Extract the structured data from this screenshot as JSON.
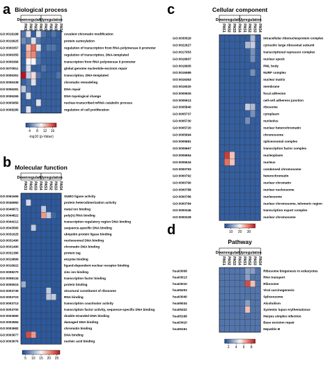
{
  "panels": [
    {
      "letter": "a",
      "title": "Biological process",
      "group_labels": [
        "Downregulaton",
        "Upregulaton"
      ],
      "columns": [
        "PAS1",
        "PAS2",
        "PAS3",
        "PAS4",
        "PAS1",
        "PAS2",
        "PAS3",
        "PAS4"
      ],
      "ids": [
        "GO:0018198",
        "GO:0016925",
        "GO:0000357",
        "GO:0006355",
        "GO:0006366",
        "GO:0070911",
        "GO:0006351",
        "GO:0006338",
        "GO:0006281",
        "GO:0006265",
        "GO:0000956",
        "GO:0008285"
      ],
      "terms": [
        "covalent chromatin modification",
        "protein sumoylation",
        "regulation of transcription from RNA polymerase II promoter",
        "regulation of transcription, DNA-templated",
        "transcription from RNA polymerase II promoter",
        "global genome nucleotide-excision repair",
        "transcription, DNA-templated",
        "chromatin remodeling",
        "DNA repair",
        "DNA topological change",
        "nuclear-transcribed mRNA catabolic process",
        "regulation of cell proliferation"
      ],
      "colorbar": {
        "ticks": [
          4,
          8,
          12,
          16
        ],
        "min": 2,
        "max": 18,
        "label": "-log10 (p-Value)"
      }
    },
    {
      "letter": "b",
      "title": "Molecular function",
      "group_labels": [
        "Downregulaton",
        "Upregulaton"
      ],
      "columns": [
        "PAS1",
        "PAS2",
        "PAS3",
        "PAS4",
        "PAS1",
        "PAS2",
        "PAS3",
        "PAS4"
      ],
      "ids": [
        "GO:0061665",
        "GO:0046982",
        "GO:0046872",
        "GO:0044822",
        "GO:0044212",
        "GO:0043565",
        "GO:0031625",
        "GO:0031490",
        "GO:0031490",
        "GO:0031386",
        "GO:0019899",
        "GO:0016922",
        "GO:0008270",
        "GO:0008134",
        "GO:0005515",
        "GO:0003735",
        "GO:0003723",
        "GO:0003713",
        "GO:0003700",
        "GO:0003690",
        "GO:0003684",
        "GO:0003682",
        "GO:0003677",
        "GO:0003676"
      ],
      "terms": [
        "SUMO ligase activity",
        "protein heterodimerization activity",
        "metal ion binding",
        "poly(A) RNA binding",
        "transcription regulatory region DNA binding",
        "sequence-specific DNA binding",
        "ubiquitin protein ligase binding",
        "nucleosomal DNA binding",
        "chromatin DNA binding",
        "protein tag",
        "enzyme binding",
        "ligand-dependent nuclear receptor binding",
        "zinc ion binding",
        "transcription factor binding",
        "protein binding",
        "structural constituent of ribosome",
        "RNA binding",
        "transcription coactivator activity",
        "transcription factor activity, sequence-specific DNA binding",
        "double-stranded DNA binding",
        "damaged DNA binding",
        "chromatin binding",
        "DNA binding",
        "nucleic acid binding"
      ],
      "colorbar": {
        "ticks": [
          5,
          10,
          15,
          20,
          25
        ],
        "min": 3,
        "max": 27,
        "label": ""
      }
    },
    {
      "letter": "c",
      "title": "Cellular component",
      "group_labels": [
        "Downregulaton",
        "Upregulaton"
      ],
      "columns": [
        "PAS1",
        "PAS2",
        "PAS3",
        "PAS4",
        "PAS1",
        "PAS2",
        "PAS3",
        "PAS4"
      ],
      "ids": [
        "GO:0030529",
        "GO:0022627",
        "GO:0017053",
        "GO:0016607",
        "GO:0016605",
        "GO:0016589",
        "GO:0016363",
        "GO:0016020",
        "GO:0005925",
        "GO:0005913",
        "GO:0005840",
        "GO:0005737",
        "GO:0005730",
        "GO:0005720",
        "GO:0005694",
        "GO:0005681",
        "GO:0005667",
        "GO:0005654",
        "GO:0005634",
        "GO:0000793",
        "GO:0000792",
        "GO:0000790",
        "GO:0000788",
        "GO:0000786",
        "GO:0000784",
        "GO:0000346",
        "GO:0000228"
      ],
      "terms": [
        "intracellular ribonucleoprotein complex",
        "cytosolic large ribosomal subunit",
        "transcriptional repressor complex",
        "nuclear speck",
        "PML body",
        "NURF complex",
        "nuclear matrix",
        "membrane",
        "focal adhesion",
        "cell-cell adherens junction",
        "ribosome",
        "cytoplasm",
        "nucleolus",
        "nuclear heterochromatin",
        "chromosome",
        "spliceosomal complex",
        "transcription factor complex",
        "nucleoplasm",
        "nucleus",
        "condensed chromosome",
        "heterochromatin",
        "nuclear chromatin",
        "nuclear nucleosome",
        "nucleosome",
        "nuclear chromosome, telomeric region",
        "transcription export complex",
        "nuclear chromosome"
      ],
      "colorbar": {
        "ticks": [
          10,
          20,
          30
        ],
        "min": 3,
        "max": 37,
        "label": ""
      }
    },
    {
      "letter": "d",
      "title": "Pathway",
      "group_labels": [
        "Downregulaton",
        "Upregulaton"
      ],
      "columns": [
        "PAS1",
        "PAS2",
        "PAS3",
        "PAS4",
        "PAS1",
        "PAS2",
        "PAS3",
        "PAS4"
      ],
      "ids": [
        "hsa03008",
        "hsa03013",
        "hsa03010",
        "hsa05203",
        "hsa03040",
        "hsa05034",
        "hsa05322",
        "hsa05168",
        "hsa03410",
        "hsa05161"
      ],
      "terms": [
        "Ribosome biogenesis in eukaryotes",
        "RNA transport",
        "Ribosome",
        "Viral carcinogenesis",
        "Spliceosome",
        "Alcoholism",
        "Systemic lupus erythematosus",
        "Herpes simplex infection",
        "Base excision repair",
        "Hepatitis B"
      ],
      "colorbar": {
        "ticks": [
          2,
          4,
          6,
          8
        ],
        "min": 1,
        "max": 9,
        "label": ""
      }
    }
  ],
  "chart_data": [
    {
      "type": "heatmap",
      "title": "Biological process",
      "x": [
        "PAS1",
        "PAS2",
        "PAS3",
        "PAS4",
        "PAS1",
        "PAS2",
        "PAS3",
        "PAS4"
      ],
      "y": [
        "GO:0018198",
        "GO:0016925",
        "GO:0000357",
        "GO:0006355",
        "GO:0006366",
        "GO:0070911",
        "GO:0006351",
        "GO:0006338",
        "GO:0006281",
        "GO:0006265",
        "GO:0000956",
        "GO:0008285"
      ],
      "values": [
        [
          4,
          9,
          3,
          9,
          4,
          3,
          4,
          3
        ],
        [
          5,
          4,
          9,
          4,
          3,
          3,
          3,
          3
        ],
        [
          3,
          12,
          15,
          9,
          3,
          4,
          4,
          3
        ],
        [
          3,
          13,
          14,
          4,
          3,
          3,
          3,
          3
        ],
        [
          3,
          10,
          10,
          4,
          3,
          3,
          3,
          3
        ],
        [
          3,
          9,
          3,
          3,
          4,
          3,
          3,
          3
        ],
        [
          18,
          8,
          11,
          4,
          3,
          3,
          3,
          4
        ],
        [
          3,
          4,
          9,
          3,
          3,
          3,
          3,
          3
        ],
        [
          8,
          4,
          3,
          3,
          3,
          3,
          3,
          3
        ],
        [
          3,
          9,
          3,
          3,
          3,
          3,
          3,
          3
        ],
        [
          3,
          3,
          3,
          9,
          3,
          3,
          3,
          3
        ],
        [
          3,
          9,
          3,
          3,
          3,
          3,
          3,
          3
        ]
      ],
      "colorbar_range": [
        2,
        18
      ]
    },
    {
      "type": "heatmap",
      "title": "Molecular function",
      "x": [
        "PAS1",
        "PAS2",
        "PAS3",
        "PAS4",
        "PAS1",
        "PAS2",
        "PAS3",
        "PAS4"
      ],
      "y": [
        "GO:0061665",
        "GO:0046982",
        "GO:0046872",
        "GO:0044822",
        "GO:0044212",
        "GO:0043565",
        "GO:0031625",
        "GO:0031490",
        "GO:0031490",
        "GO:0031386",
        "GO:0019899",
        "GO:0016922",
        "GO:0008270",
        "GO:0008134",
        "GO:0005515",
        "GO:0003735",
        "GO:0003723",
        "GO:0003713",
        "GO:0003700",
        "GO:0003690",
        "GO:0003684",
        "GO:0003682",
        "GO:0003677",
        "GO:0003676"
      ],
      "values": [
        [
          4,
          4,
          4,
          4,
          4,
          4,
          4,
          4
        ],
        [
          4,
          13,
          4,
          4,
          4,
          4,
          4,
          4
        ],
        [
          4,
          4,
          4,
          4,
          12,
          4,
          4,
          4
        ],
        [
          4,
          4,
          4,
          4,
          20,
          12,
          5,
          4
        ],
        [
          4,
          4,
          4,
          4,
          4,
          4,
          4,
          4
        ],
        [
          4,
          4,
          12,
          4,
          4,
          4,
          4,
          4
        ],
        [
          4,
          4,
          4,
          4,
          4,
          4,
          4,
          4
        ],
        [
          4,
          4,
          4,
          4,
          4,
          4,
          4,
          4
        ],
        [
          4,
          4,
          4,
          4,
          4,
          4,
          4,
          4
        ],
        [
          4,
          4,
          4,
          4,
          4,
          4,
          4,
          4
        ],
        [
          4,
          4,
          4,
          4,
          4,
          4,
          4,
          4
        ],
        [
          4,
          4,
          4,
          4,
          4,
          4,
          4,
          4
        ],
        [
          4,
          4,
          4,
          4,
          4,
          4,
          4,
          4
        ],
        [
          4,
          4,
          4,
          4,
          4,
          4,
          4,
          4
        ],
        [
          10,
          4,
          4,
          4,
          4,
          4,
          4,
          4
        ],
        [
          4,
          4,
          4,
          4,
          4,
          12,
          4,
          4
        ],
        [
          4,
          4,
          4,
          4,
          4,
          12,
          12,
          4
        ],
        [
          4,
          4,
          4,
          4,
          4,
          4,
          4,
          4
        ],
        [
          4,
          4,
          4,
          4,
          4,
          4,
          4,
          4
        ],
        [
          4,
          4,
          4,
          4,
          4,
          4,
          4,
          4
        ],
        [
          4,
          4,
          4,
          4,
          4,
          4,
          4,
          4
        ],
        [
          4,
          4,
          4,
          4,
          4,
          4,
          4,
          4
        ],
        [
          4,
          24,
          20,
          4,
          4,
          4,
          4,
          4
        ],
        [
          4,
          4,
          4,
          4,
          4,
          4,
          4,
          4
        ]
      ],
      "colorbar_range": [
        3,
        27
      ]
    },
    {
      "type": "heatmap",
      "title": "Cellular component",
      "x": [
        "PAS1",
        "PAS2",
        "PAS3",
        "PAS4",
        "PAS1",
        "PAS2",
        "PAS3",
        "PAS4"
      ],
      "y": [
        "GO:0030529",
        "GO:0022627",
        "GO:0017053",
        "GO:0016607",
        "GO:0016605",
        "GO:0016589",
        "GO:0016363",
        "GO:0016020",
        "GO:0005925",
        "GO:0005913",
        "GO:0005840",
        "GO:0005737",
        "GO:0005730",
        "GO:0005720",
        "GO:0005694",
        "GO:0005681",
        "GO:0005667",
        "GO:0005654",
        "GO:0005634",
        "GO:0000793",
        "GO:0000792",
        "GO:0000790",
        "GO:0000788",
        "GO:0000786",
        "GO:0000784",
        "GO:0000346",
        "GO:0000228"
      ],
      "values": [
        [
          5,
          5,
          5,
          5,
          5,
          5,
          14,
          5
        ],
        [
          5,
          5,
          5,
          5,
          5,
          14,
          16,
          5
        ],
        [
          5,
          5,
          5,
          5,
          5,
          5,
          10,
          5
        ],
        [
          5,
          5,
          5,
          5,
          5,
          5,
          10,
          5
        ],
        [
          5,
          5,
          5,
          5,
          5,
          5,
          5,
          5
        ],
        [
          5,
          5,
          5,
          5,
          5,
          5,
          10,
          5
        ],
        [
          5,
          5,
          5,
          5,
          5,
          5,
          5,
          5
        ],
        [
          5,
          5,
          5,
          5,
          5,
          5,
          5,
          5
        ],
        [
          5,
          5,
          5,
          5,
          5,
          5,
          5,
          5
        ],
        [
          5,
          5,
          5,
          5,
          5,
          5,
          5,
          5
        ],
        [
          5,
          5,
          5,
          5,
          5,
          16,
          14,
          5
        ],
        [
          5,
          5,
          5,
          5,
          5,
          5,
          10,
          5
        ],
        [
          5,
          5,
          5,
          5,
          5,
          10,
          5,
          5
        ],
        [
          5,
          5,
          5,
          5,
          5,
          5,
          5,
          5
        ],
        [
          5,
          5,
          5,
          5,
          5,
          5,
          5,
          5
        ],
        [
          5,
          5,
          5,
          5,
          5,
          5,
          5,
          5
        ],
        [
          5,
          5,
          5,
          5,
          5,
          5,
          5,
          5
        ],
        [
          5,
          34,
          24,
          5,
          5,
          5,
          5,
          5
        ],
        [
          5,
          30,
          24,
          5,
          5,
          5,
          5,
          5
        ],
        [
          5,
          5,
          5,
          5,
          5,
          5,
          5,
          5
        ],
        [
          5,
          5,
          5,
          5,
          5,
          5,
          5,
          5
        ],
        [
          5,
          5,
          5,
          5,
          5,
          5,
          5,
          5
        ],
        [
          5,
          5,
          5,
          5,
          5,
          5,
          5,
          5
        ],
        [
          5,
          5,
          5,
          5,
          5,
          5,
          5,
          5
        ],
        [
          5,
          5,
          5,
          5,
          5,
          5,
          5,
          5
        ],
        [
          5,
          5,
          5,
          5,
          5,
          5,
          5,
          5
        ],
        [
          5,
          5,
          5,
          5,
          5,
          5,
          5,
          5
        ]
      ],
      "colorbar_range": [
        3,
        37
      ]
    },
    {
      "type": "heatmap",
      "title": "Pathway",
      "x": [
        "PAS1",
        "PAS2",
        "PAS3",
        "PAS4",
        "PAS1",
        "PAS2",
        "PAS3",
        "PAS4"
      ],
      "y": [
        "hsa03008",
        "hsa03013",
        "hsa03010",
        "hsa05203",
        "hsa03040",
        "hsa05034",
        "hsa05322",
        "hsa05168",
        "hsa03410",
        "hsa05161"
      ],
      "values": [
        [
          2,
          2,
          2,
          2,
          2,
          3,
          3,
          2
        ],
        [
          2,
          2,
          2,
          2,
          2,
          3,
          2,
          2
        ],
        [
          2,
          2,
          2,
          2,
          2,
          8,
          6,
          2
        ],
        [
          2,
          2,
          2,
          2,
          2,
          2,
          2,
          2
        ],
        [
          2,
          2,
          2,
          2,
          2,
          2,
          2,
          2
        ],
        [
          2,
          2,
          2,
          2,
          2,
          3,
          2,
          2
        ],
        [
          2,
          2,
          2,
          2,
          2,
          6,
          2,
          2
        ],
        [
          2,
          2,
          2,
          2,
          2,
          2,
          2,
          2
        ],
        [
          2,
          2,
          2,
          2,
          2,
          2,
          2,
          2
        ],
        [
          2,
          2,
          2,
          2,
          2,
          2,
          2,
          2
        ]
      ],
      "colorbar_range": [
        1,
        9
      ]
    }
  ]
}
